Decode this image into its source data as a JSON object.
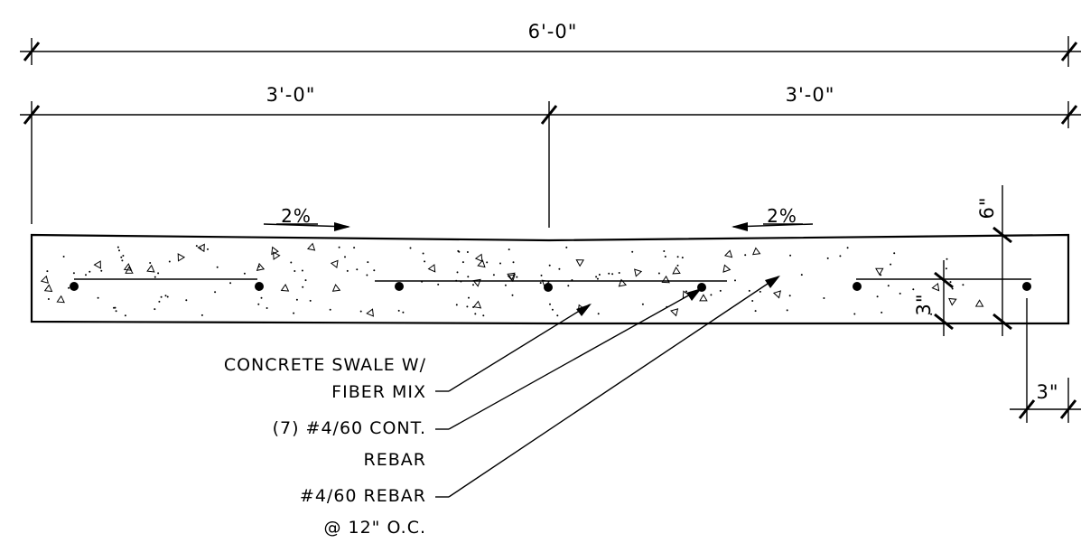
{
  "dimensions": {
    "overall": "6'-0\"",
    "left_half": "3'-0\"",
    "right_half": "3'-0\"",
    "depth": "6\"",
    "rebar_height": "3\"",
    "edge_offset": "3\""
  },
  "slopes": {
    "left": "2%",
    "right": "2%"
  },
  "notes": [
    {
      "lines": [
        "CONCRETE SWALE W/",
        "FIBER MIX"
      ]
    },
    {
      "lines": [
        "(7) #4/60 CONT.",
        "REBAR"
      ]
    },
    {
      "lines": [
        "#4/60 REBAR",
        "@ 12\" O.C."
      ]
    }
  ]
}
